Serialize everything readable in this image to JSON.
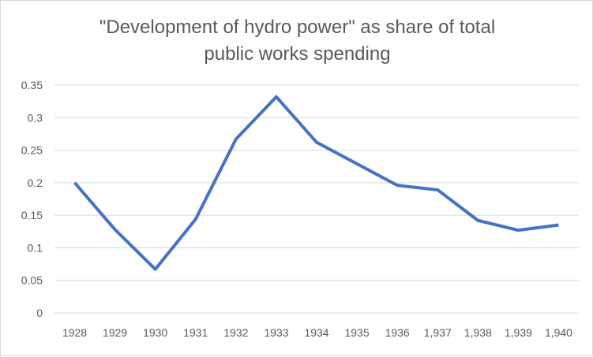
{
  "chart_data": {
    "type": "line",
    "title_lines": [
      "\"Development of hydro power\" as share of total",
      "public works spending"
    ],
    "xlabel": "",
    "ylabel": "",
    "categories": [
      "1928",
      "1929",
      "1930",
      "1931",
      "1932",
      "1933",
      "1934",
      "1935",
      "1936",
      "1,937",
      "1,938",
      "1,939",
      "1,940"
    ],
    "values": [
      0.2,
      0.128,
      0.067,
      0.144,
      0.267,
      0.332,
      0.262,
      0.229,
      0.196,
      0.189,
      0.142,
      0.127,
      0.135
    ],
    "ylim": [
      0,
      0.35
    ],
    "yticks": [
      "0",
      "0.05",
      "0.1",
      "0.15",
      "0.2",
      "0.25",
      "0.3",
      "0.35"
    ],
    "grid": true,
    "legend": "none",
    "line_color": "#4472C4",
    "grid_color": "#d9d9d9"
  }
}
